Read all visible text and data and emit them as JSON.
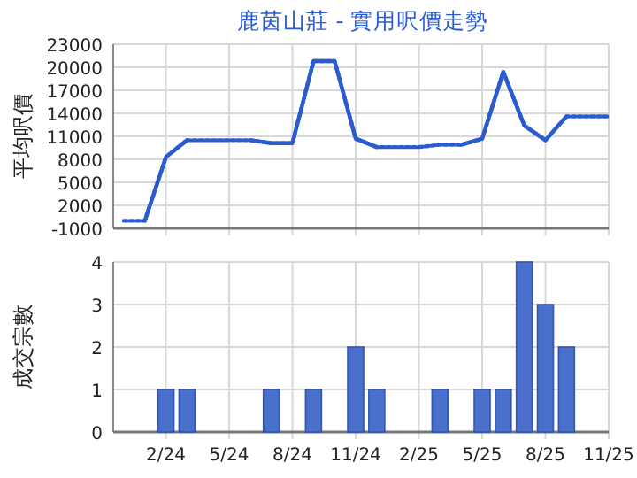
{
  "chart_data": [
    {
      "type": "line",
      "title": "鹿茵山莊 - 實用呎價走勢",
      "ylabel": "平均呎價",
      "x": [
        "2023-12",
        "2024-01",
        "2024-02",
        "2024-03",
        "2024-04",
        "2024-05",
        "2024-06",
        "2024-07",
        "2024-08",
        "2024-09",
        "2024-10",
        "2024-11",
        "2024-12",
        "2025-01",
        "2025-02",
        "2025-03",
        "2025-04",
        "2025-05",
        "2025-06",
        "2025-07",
        "2025-08",
        "2025-09",
        "2025-10",
        "2025-11"
      ],
      "series": [
        {
          "color": "#2a5bd0",
          "line_style": "dotted",
          "values": [
            0,
            0,
            8300,
            10500,
            10500,
            10500,
            10500,
            10100,
            10100,
            20800,
            20800,
            10700,
            9600,
            9600,
            9600,
            9900,
            9900,
            10700,
            19400,
            12400,
            10500,
            13600,
            13600,
            13600
          ]
        },
        {
          "color": "#2a5bd0",
          "line_style": "solid",
          "values": [
            null,
            0,
            8300,
            10500,
            null,
            null,
            10500,
            10100,
            10100,
            20800,
            20800,
            10700,
            9600,
            null,
            null,
            null,
            9900,
            10700,
            19400,
            12400,
            10500,
            13600,
            null,
            null
          ]
        }
      ],
      "xlim": [
        "2023-11-16",
        "2025-11"
      ],
      "xticks": [
        {
          "value": "2024-02",
          "label": null
        },
        {
          "value": "2024-05",
          "label": null
        },
        {
          "value": "2024-08",
          "label": null
        },
        {
          "value": "2024-11",
          "label": null
        },
        {
          "value": "2025-02",
          "label": null
        },
        {
          "value": "2025-05",
          "label": null
        },
        {
          "value": "2025-08",
          "label": null
        },
        {
          "value": "2025-11",
          "label": null
        }
      ],
      "ylim": [
        -1000,
        23000
      ],
      "yticks": [
        -1000,
        2000,
        5000,
        8000,
        11000,
        14000,
        17000,
        20000,
        23000
      ],
      "grid": true,
      "tick_labels": "y"
    },
    {
      "type": "bar",
      "ylabel": "成交宗數",
      "color": "#4a70cc",
      "x": [
        "2024-02",
        "2024-03",
        "2024-07",
        "2024-09",
        "2024-11",
        "2024-12",
        "2025-03",
        "2025-05",
        "2025-06",
        "2025-07",
        "2025-08",
        "2025-09"
      ],
      "values": [
        1,
        1,
        1,
        1,
        2,
        1,
        1,
        1,
        1,
        4,
        3,
        2
      ],
      "xlim": [
        "2023-11-16",
        "2025-11"
      ],
      "xticks": [
        {
          "value": "2024-02",
          "label": "2/24"
        },
        {
          "value": "2024-05",
          "label": "5/24"
        },
        {
          "value": "2024-08",
          "label": "8/24"
        },
        {
          "value": "2024-11",
          "label": "11/24"
        },
        {
          "value": "2025-02",
          "label": "2/25"
        },
        {
          "value": "2025-05",
          "label": "5/25"
        },
        {
          "value": "2025-08",
          "label": "8/25"
        },
        {
          "value": "2025-11",
          "label": "11/25"
        }
      ],
      "ylim": [
        0,
        4
      ],
      "yticks": [
        0,
        1,
        2,
        3,
        4
      ],
      "grid": true
    }
  ]
}
